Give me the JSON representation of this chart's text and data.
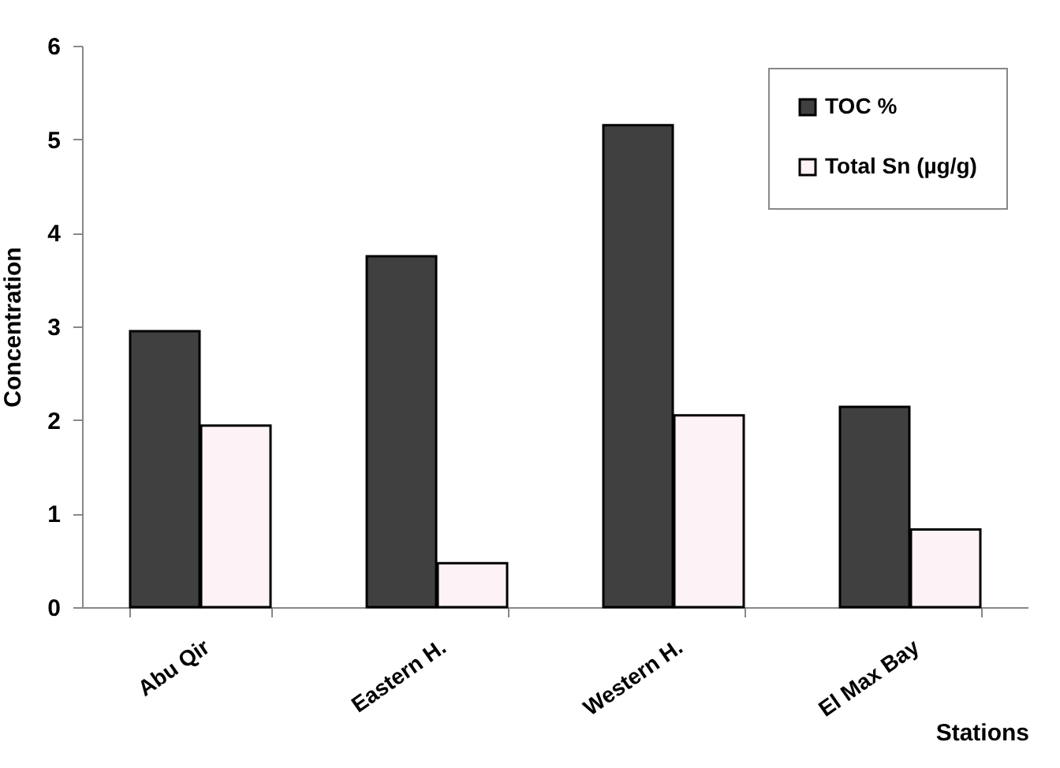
{
  "chart_data": {
    "type": "bar",
    "xlabel": "Stations",
    "ylabel": "Concentration",
    "categories": [
      "Abu Qir",
      "Eastern H.",
      "Western H.",
      "El Max Bay"
    ],
    "series": [
      {
        "name": "TOC %",
        "color": "#404040",
        "values": [
          2.95,
          3.75,
          5.15,
          2.14
        ]
      },
      {
        "name": "Total Sn (µg/g)",
        "color": "#fdf2f6",
        "values": [
          1.94,
          0.47,
          2.05,
          0.83
        ]
      }
    ],
    "ylim": [
      0,
      6
    ],
    "yticks": [
      0,
      1,
      2,
      3,
      4,
      5,
      6
    ],
    "grid": false,
    "legend": "top right"
  }
}
